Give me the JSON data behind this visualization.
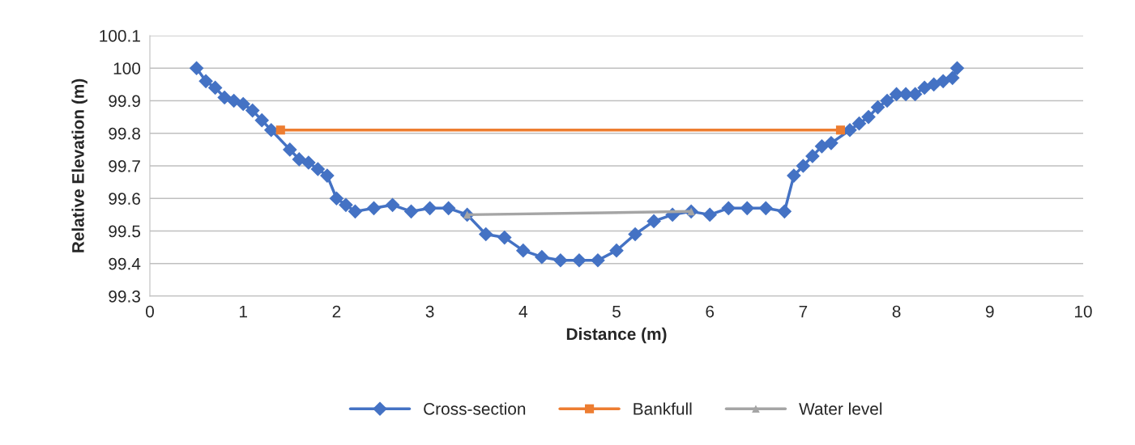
{
  "chart_data": {
    "type": "line",
    "xlabel": "Distance (m)",
    "ylabel": "Relative Elevation (m)",
    "xlim": [
      0,
      10
    ],
    "xticks": [
      0,
      1,
      2,
      3,
      4,
      5,
      6,
      7,
      8,
      9,
      10
    ],
    "ylim": [
      99.3,
      100.1
    ],
    "yticks": [
      99.3,
      99.4,
      99.5,
      99.6,
      99.7,
      99.8,
      99.9,
      100,
      100.1
    ],
    "grid": "y",
    "legend": "bottom",
    "series": [
      {
        "name": "Cross-section",
        "color": "#4472c4",
        "marker": "diamond",
        "x": [
          0.5,
          0.6,
          0.7,
          0.8,
          0.9,
          1.0,
          1.1,
          1.2,
          1.3,
          1.5,
          1.6,
          1.7,
          1.8,
          1.9,
          2.0,
          2.1,
          2.2,
          2.4,
          2.6,
          2.8,
          3.0,
          3.2,
          3.4,
          3.6,
          3.8,
          4.0,
          4.2,
          4.4,
          4.6,
          4.8,
          5.0,
          5.2,
          5.4,
          5.6,
          5.8,
          6.0,
          6.2,
          6.4,
          6.6,
          6.8,
          6.9,
          7.0,
          7.1,
          7.2,
          7.3,
          7.5,
          7.6,
          7.7,
          7.8,
          7.9,
          8.0,
          8.1,
          8.2,
          8.3,
          8.4,
          8.5,
          8.6,
          8.65
        ],
        "values": [
          100,
          99.96,
          99.94,
          99.91,
          99.9,
          99.89,
          99.87,
          99.84,
          99.81,
          99.75,
          99.72,
          99.71,
          99.69,
          99.67,
          99.6,
          99.58,
          99.56,
          99.57,
          99.58,
          99.56,
          99.57,
          99.57,
          99.55,
          99.49,
          99.48,
          99.44,
          99.42,
          99.41,
          99.41,
          99.41,
          99.44,
          99.49,
          99.53,
          99.55,
          99.56,
          99.55,
          99.57,
          99.57,
          99.57,
          99.56,
          99.67,
          99.7,
          99.73,
          99.76,
          99.77,
          99.81,
          99.83,
          99.85,
          99.88,
          99.9,
          99.92,
          99.92,
          99.92,
          99.94,
          99.95,
          99.96,
          99.97,
          100
        ]
      },
      {
        "name": "Bankfull",
        "color": "#ed7d31",
        "marker": "square",
        "x": [
          1.4,
          7.4
        ],
        "values": [
          99.81,
          99.81
        ]
      },
      {
        "name": "Water level",
        "color": "#a5a5a5",
        "marker": "triangle",
        "x": [
          3.4,
          5.8
        ],
        "values": [
          99.55,
          99.56
        ]
      }
    ]
  }
}
